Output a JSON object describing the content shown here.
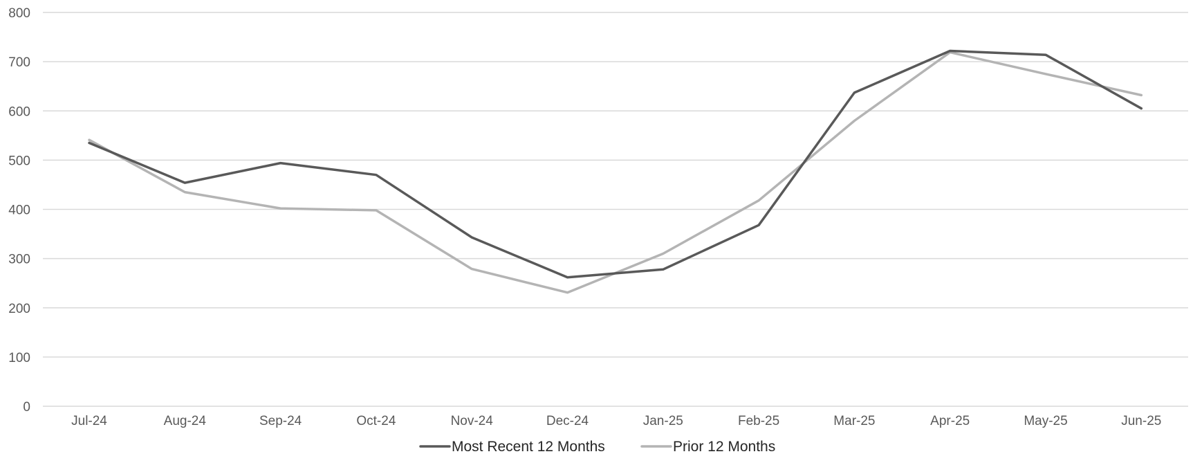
{
  "chart_data": {
    "type": "line",
    "title": "",
    "xlabel": "",
    "ylabel": "",
    "categories": [
      "Jul-24",
      "Aug-24",
      "Sep-24",
      "Oct-24",
      "Nov-24",
      "Dec-24",
      "Jan-25",
      "Feb-25",
      "Mar-25",
      "Apr-25",
      "May-25",
      "Jun-25"
    ],
    "ylim": [
      0,
      800
    ],
    "yticks": [
      0,
      100,
      200,
      300,
      400,
      500,
      600,
      700,
      800
    ],
    "grid": true,
    "legend_position": "bottom",
    "series": [
      {
        "name": "Most Recent 12 Months",
        "color": "#595959",
        "values": [
          535,
          454,
          494,
          470,
          343,
          262,
          278,
          368,
          637,
          722,
          714,
          605
        ]
      },
      {
        "name": "Prior 12 Months",
        "color": "#b4b4b4",
        "values": [
          541,
          435,
          402,
          398,
          279,
          231,
          310,
          418,
          580,
          719,
          675,
          632
        ]
      }
    ]
  }
}
